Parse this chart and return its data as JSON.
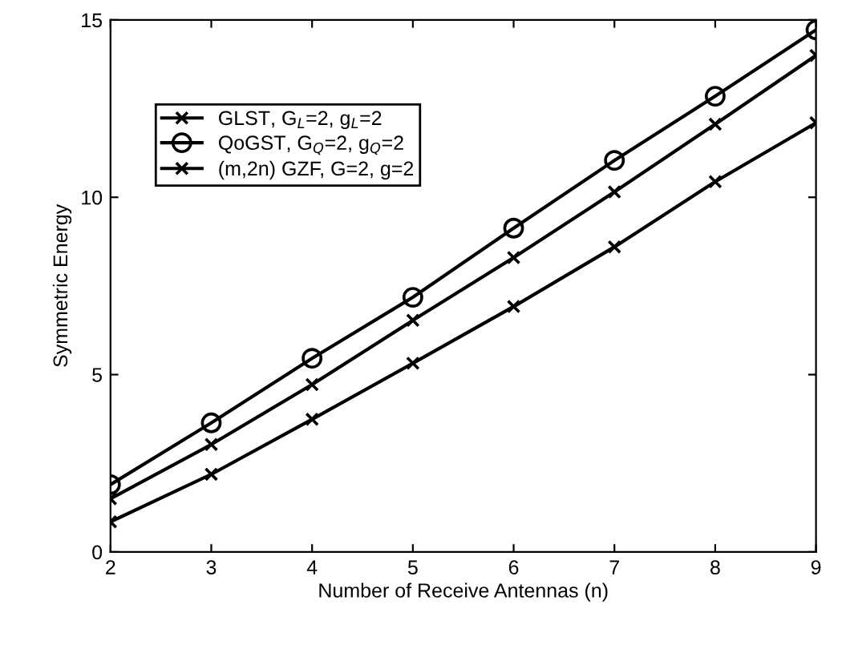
{
  "chart_data": {
    "type": "line",
    "xlabel": "Number of Receive Antennas (n)",
    "ylabel": "Symmetric Energy",
    "x": [
      2,
      3,
      4,
      5,
      6,
      7,
      8,
      9
    ],
    "xlim": [
      2,
      9
    ],
    "xticks": [
      2,
      3,
      4,
      5,
      6,
      7,
      8,
      9
    ],
    "ylim": [
      0,
      15
    ],
    "yticks": [
      0,
      5,
      10,
      15
    ],
    "grid": false,
    "legend": "top left",
    "series": [
      {
        "name": "GLST, G$_{L}$=2, g$_{L}$=2",
        "color": "#000000",
        "marker": "cross",
        "values": [
          1.5,
          3.03,
          4.72,
          6.53,
          8.3,
          10.15,
          12.06,
          14.0
        ]
      },
      {
        "name": "QoGST, G$_{Q}$=2, g$_{Q}$=2",
        "color": "#000000",
        "marker": "circle",
        "values": [
          1.9,
          3.64,
          5.46,
          7.18,
          9.13,
          11.04,
          12.85,
          14.72
        ]
      },
      {
        "name": "(m,2n) GZF, G=2, g=2",
        "color": "#000000",
        "marker": "cross",
        "values": [
          0.85,
          2.19,
          3.74,
          5.32,
          6.92,
          8.6,
          10.44,
          12.1
        ]
      }
    ]
  }
}
